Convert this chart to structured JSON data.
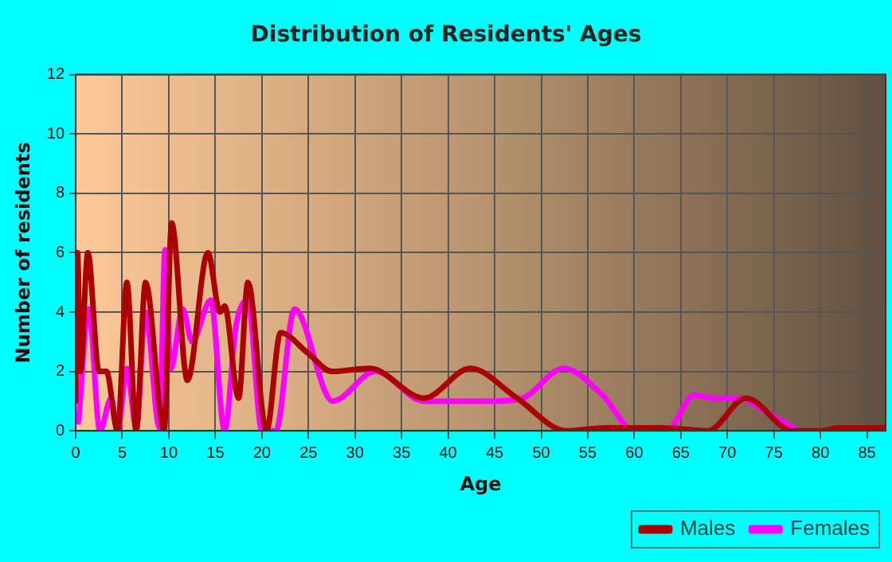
{
  "chart_data": {
    "type": "line",
    "title": "Distribution of Residents' Ages",
    "xlabel": "Age",
    "ylabel": "Number of residents",
    "xlim": [
      0,
      87
    ],
    "xticks": [
      0,
      5,
      10,
      15,
      20,
      25,
      30,
      35,
      40,
      45,
      50,
      55,
      60,
      65,
      70,
      75,
      80,
      85
    ],
    "ylim": [
      0,
      12
    ],
    "yticks": [
      0,
      2,
      4,
      6,
      8,
      10,
      12
    ],
    "grid": true,
    "legend": "bottom right",
    "marker": "none",
    "line_style": "solid",
    "series": [
      {
        "name": "Males",
        "color": "#aa0000",
        "x": [
          0,
          0.2,
          0.5,
          1.3,
          2.5,
          3.3,
          4.5,
          5.5,
          6.5,
          7.5,
          9.5,
          10.3,
          12,
          14.2,
          15.5,
          16,
          17.5,
          18.5,
          20.5,
          22,
          25,
          27.5,
          31.6,
          37.4,
          42.4,
          47.4,
          52.7,
          57,
          63,
          67.9,
          72,
          77,
          80,
          82,
          87
        ],
        "values": [
          1,
          6,
          2,
          6,
          2,
          2,
          0,
          5,
          0,
          5,
          0,
          7,
          1.7,
          6,
          4,
          4.2,
          1.1,
          5,
          0,
          3.3,
          2.6,
          2,
          2.1,
          1.1,
          2.1,
          1.1,
          0,
          0.1,
          0.1,
          0,
          1.1,
          0,
          0,
          0.1,
          0.1
        ]
      },
      {
        "name": "Females",
        "color": "#ff00ff",
        "x": [
          0.3,
          1.4,
          2.6,
          3.8,
          4.5,
          5.5,
          6.5,
          7.5,
          9,
          9.6,
          10.2,
          11.5,
          12.5,
          14.5,
          16,
          17.2,
          18.5,
          20,
          21.5,
          23.5,
          27.6,
          32.2,
          37.4,
          45,
          48,
          52.4,
          56.6,
          60,
          63.5,
          66.4,
          68.7,
          71.6,
          73.3,
          77.6
        ],
        "values": [
          0.3,
          4.1,
          0,
          1.1,
          0,
          2.1,
          0.1,
          4,
          0.1,
          6.1,
          2.1,
          4.1,
          3,
          4.4,
          0,
          3.5,
          4.4,
          0,
          0,
          4.1,
          1,
          2,
          1,
          1,
          1.1,
          2.1,
          1.2,
          0,
          0,
          1.2,
          1.1,
          1.1,
          0.8,
          0
        ]
      }
    ]
  }
}
